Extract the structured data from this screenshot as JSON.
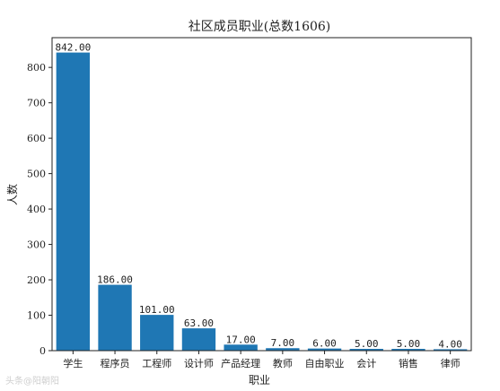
{
  "watermark": "头条@阳朝阳",
  "chart_data": {
    "type": "bar",
    "title": "社区成员职业(总数1606)",
    "xlabel": "职业",
    "ylabel": "人数",
    "categories": [
      "学生",
      "程序员",
      "工程师",
      "设计师",
      "产品经理",
      "教师",
      "自由职业",
      "会计",
      "销售",
      "律师"
    ],
    "values": [
      842,
      186,
      101,
      63,
      17,
      7,
      6,
      5,
      5,
      4
    ],
    "value_labels": [
      "842.00",
      "186.00",
      "101.00",
      "63.00",
      "17.00",
      "7.00",
      "6.00",
      "5.00",
      "5.00",
      "4.00"
    ],
    "ylim": [
      0,
      884
    ],
    "yticks": [
      0,
      100,
      200,
      300,
      400,
      500,
      600,
      700,
      800
    ],
    "bar_color": "#1f77b4",
    "grid": false,
    "legend": "none"
  }
}
